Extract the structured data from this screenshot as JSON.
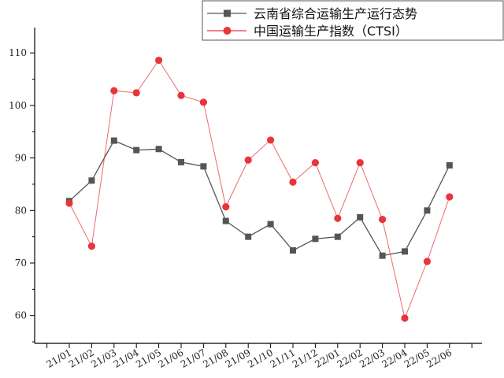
{
  "chart_data": {
    "type": "line",
    "title": "",
    "xlabel": "",
    "ylabel": "",
    "categories": [
      "21/01",
      "21/02",
      "21/03",
      "21/04",
      "21/05",
      "21/06",
      "21/07",
      "21/08",
      "21/09",
      "21/10",
      "21/11",
      "21/12",
      "22/01",
      "22/02",
      "22/03",
      "22/04",
      "22/05",
      "22/06"
    ],
    "yticks": [
      60,
      70,
      80,
      90,
      100,
      110
    ],
    "ylim": [
      55,
      115
    ],
    "grid": false,
    "legend": "top-right",
    "series": [
      {
        "name": "云南省综合运输生产运行态势",
        "marker": "square",
        "color": "#555555",
        "values": [
          81.8,
          85.7,
          93.3,
          91.5,
          91.7,
          89.2,
          88.4,
          78.0,
          75.0,
          77.4,
          72.4,
          74.6,
          75.0,
          78.7,
          71.4,
          72.2,
          80.0,
          88.6
        ]
      },
      {
        "name": "中国运输生产指数（CTSI）",
        "marker": "circle",
        "color": "#e8353b",
        "values": [
          81.4,
          73.2,
          102.8,
          102.4,
          108.6,
          101.9,
          100.6,
          80.7,
          89.6,
          93.4,
          85.4,
          89.1,
          78.5,
          89.1,
          78.3,
          59.5,
          70.3,
          82.6
        ]
      }
    ]
  }
}
